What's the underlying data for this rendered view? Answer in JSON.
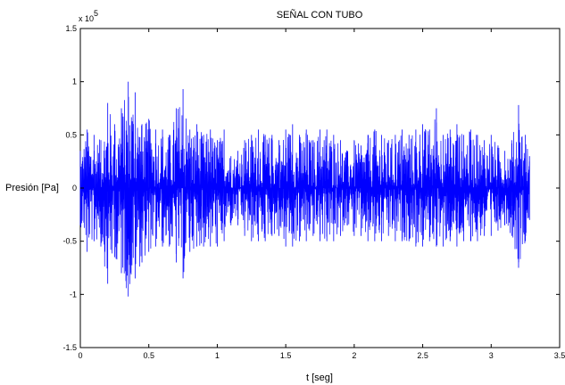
{
  "chart_data": {
    "type": "line",
    "title": "SEÑAL CON TUBO",
    "xlabel": "t [seg]",
    "ylabel": "Presión [Pa]",
    "y_multiplier_label": "x 10",
    "y_multiplier_exponent": "5",
    "xlim": [
      0,
      3.5
    ],
    "ylim": [
      -1.5,
      1.5
    ],
    "x_ticks": [
      0,
      0.5,
      1,
      1.5,
      2,
      2.5,
      3,
      3.5
    ],
    "x_tick_labels": [
      "0",
      "0.5",
      "1",
      "1.5",
      "2",
      "2.5",
      "3",
      "3.5"
    ],
    "y_ticks": [
      -1.5,
      -1,
      -0.5,
      0,
      0.5,
      1,
      1.5
    ],
    "y_tick_labels": [
      "-1.5",
      "-1",
      "-0.5",
      "0",
      "0.5",
      "1",
      "1.5"
    ],
    "grid": false,
    "series_color": "#0000ff",
    "series": [
      {
        "x": [
          0,
          0.05,
          0.1,
          0.15,
          0.2,
          0.25,
          0.3,
          0.35,
          0.4,
          0.45,
          0.5,
          0.55,
          0.6,
          0.65,
          0.7,
          0.75,
          0.8,
          0.85,
          0.9,
          0.95,
          1.0,
          1.05,
          1.1,
          1.15,
          1.2,
          1.25,
          1.3,
          1.35,
          1.4,
          1.45,
          1.5,
          1.55,
          1.6,
          1.65,
          1.7,
          1.75,
          1.8,
          1.85,
          1.9,
          1.95,
          2.0,
          2.05,
          2.1,
          2.15,
          2.2,
          2.25,
          2.3,
          2.35,
          2.4,
          2.45,
          2.5,
          2.55,
          2.6,
          2.65,
          2.7,
          2.75,
          2.8,
          2.85,
          2.9,
          2.95,
          3.0,
          3.05,
          3.1,
          3.15,
          3.2,
          3.25,
          3.28
        ],
        "values": [
          0.35,
          0.55,
          0.5,
          0.45,
          0.8,
          0.6,
          0.75,
          1.0,
          0.9,
          0.6,
          0.65,
          0.55,
          0.55,
          0.5,
          0.75,
          0.93,
          0.55,
          0.6,
          0.5,
          0.55,
          0.45,
          0.55,
          0.3,
          0.35,
          0.45,
          0.5,
          0.55,
          0.5,
          0.5,
          0.45,
          0.55,
          0.6,
          0.5,
          0.55,
          0.45,
          0.55,
          0.55,
          0.5,
          0.45,
          0.35,
          0.45,
          0.4,
          0.5,
          0.55,
          0.5,
          0.45,
          0.5,
          0.55,
          0.5,
          0.55,
          0.6,
          0.55,
          0.75,
          0.5,
          0.55,
          0.6,
          0.5,
          0.55,
          0.5,
          0.45,
          0.5,
          0.4,
          0.35,
          0.45,
          0.78,
          0.5,
          0.3
        ],
        "lower_values": [
          -0.35,
          -0.6,
          -0.5,
          -0.55,
          -0.9,
          -0.65,
          -0.8,
          -1.02,
          -0.85,
          -0.7,
          -0.6,
          -0.55,
          -0.55,
          -0.55,
          -0.7,
          -0.85,
          -0.6,
          -0.55,
          -0.55,
          -0.55,
          -0.55,
          -0.5,
          -0.35,
          -0.35,
          -0.45,
          -0.5,
          -0.5,
          -0.5,
          -0.45,
          -0.45,
          -0.55,
          -0.55,
          -0.5,
          -0.5,
          -0.45,
          -0.5,
          -0.5,
          -0.5,
          -0.45,
          -0.35,
          -0.45,
          -0.45,
          -0.5,
          -0.5,
          -0.5,
          -0.45,
          -0.5,
          -0.5,
          -0.5,
          -0.55,
          -0.55,
          -0.5,
          -0.55,
          -0.55,
          -0.5,
          -0.55,
          -0.5,
          -0.5,
          -0.5,
          -0.45,
          -0.45,
          -0.4,
          -0.35,
          -0.45,
          -0.75,
          -0.5,
          -0.3
        ]
      }
    ]
  }
}
